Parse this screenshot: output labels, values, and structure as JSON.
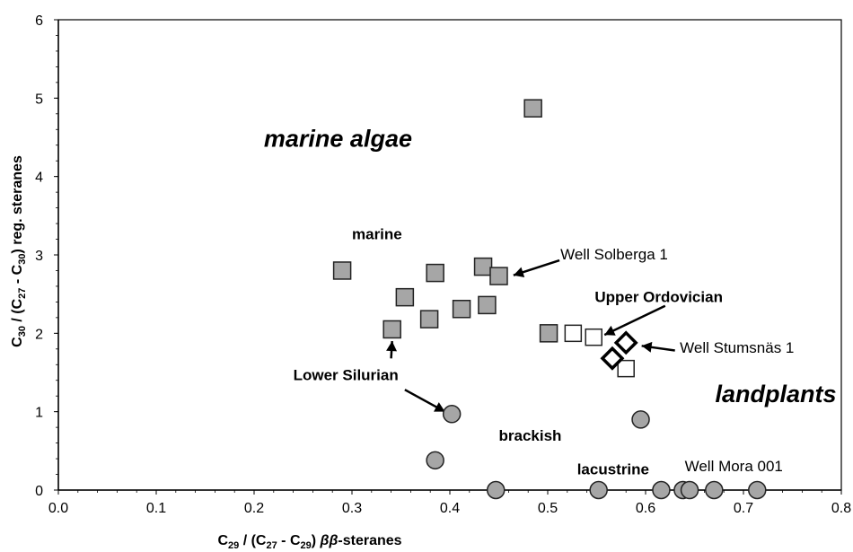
{
  "chart_data": {
    "type": "scatter",
    "xlim": [
      0,
      0.8
    ],
    "ylim": [
      0,
      6
    ],
    "x_ticks": [
      "0.0",
      "0.1",
      "0.2",
      "0.3",
      "0.4",
      "0.5",
      "0.6",
      "0.7",
      "0.8"
    ],
    "y_ticks": [
      "0",
      "1",
      "2",
      "3",
      "4",
      "5",
      "6"
    ],
    "grid": false,
    "xlabel": {
      "c1": "C",
      "s1": "29",
      "t1": " / (C",
      "s2": "27",
      "t2": " - C",
      "s3": "29",
      "t3": ") ",
      "italic": "ββ",
      "t4": "-steranes"
    },
    "ylabel": {
      "c1": "C",
      "s1": "30",
      "t1": " / (C",
      "s2": "27",
      "t2": " - C",
      "s3": "30",
      "t3": ") reg. steranes"
    },
    "series": [
      {
        "marker": "square-filled",
        "color": "#a6a6a6",
        "points": [
          [
            0.485,
            4.87
          ],
          [
            0.29,
            2.8
          ],
          [
            0.385,
            2.77
          ],
          [
            0.434,
            2.85
          ],
          [
            0.45,
            2.73
          ],
          [
            0.354,
            2.46
          ],
          [
            0.412,
            2.31
          ],
          [
            0.438,
            2.36
          ],
          [
            0.379,
            2.18
          ],
          [
            0.341,
            2.05
          ],
          [
            0.501,
            2.0
          ]
        ]
      },
      {
        "marker": "square-open",
        "color": "#ffffff",
        "points": [
          [
            0.526,
            2.0
          ],
          [
            0.547,
            1.95
          ],
          [
            0.58,
            1.55
          ]
        ]
      },
      {
        "marker": "diamond-open",
        "color": "#ffffff",
        "points": [
          [
            0.566,
            1.68
          ],
          [
            0.58,
            1.88
          ]
        ]
      },
      {
        "marker": "circle-filled",
        "color": "#a6a6a6",
        "points": [
          [
            0.402,
            0.97
          ],
          [
            0.385,
            0.38
          ],
          [
            0.595,
            0.9
          ],
          [
            0.447,
            0.0
          ],
          [
            0.552,
            0.0
          ],
          [
            0.616,
            0.0
          ],
          [
            0.638,
            0.0
          ],
          [
            0.645,
            0.0
          ],
          [
            0.67,
            0.0
          ],
          [
            0.714,
            0.0
          ]
        ]
      }
    ],
    "annotations": [
      {
        "text": "marine algae",
        "x": 0.21,
        "y": 4.38,
        "style": "region"
      },
      {
        "text": "landplants",
        "x": 0.795,
        "y": 1.12,
        "style": "region",
        "anchor": "end"
      },
      {
        "text": "marine",
        "x": 0.3,
        "y": 3.2,
        "style": "group"
      },
      {
        "text": "brackish",
        "x": 0.45,
        "y": 0.63,
        "style": "group"
      },
      {
        "text": "lacustrine",
        "x": 0.53,
        "y": 0.2,
        "style": "group"
      },
      {
        "text": "Upper Ordovician",
        "x": 0.548,
        "y": 2.4,
        "style": "group"
      },
      {
        "text": "Lower Silurian",
        "x": 0.24,
        "y": 1.4,
        "style": "gray"
      },
      {
        "text": "Well Solberga 1",
        "x": 0.513,
        "y": 2.94,
        "style": "well"
      },
      {
        "text": "Well Stumsnäs 1",
        "x": 0.635,
        "y": 1.75,
        "style": "well"
      },
      {
        "text": "Well Mora 001",
        "x": 0.64,
        "y": 0.24,
        "style": "well"
      }
    ],
    "arrows": [
      {
        "from": [
          0.512,
          2.93
        ],
        "to": [
          0.465,
          2.74
        ]
      },
      {
        "from": [
          0.62,
          2.35
        ],
        "to": [
          0.558,
          1.98
        ]
      },
      {
        "from": [
          0.63,
          1.78
        ],
        "to": [
          0.596,
          1.84
        ]
      },
      {
        "from": [
          0.34,
          1.68
        ],
        "to": [
          0.341,
          1.9
        ]
      },
      {
        "from": [
          0.354,
          1.28
        ],
        "to": [
          0.395,
          1.0
        ]
      }
    ]
  }
}
